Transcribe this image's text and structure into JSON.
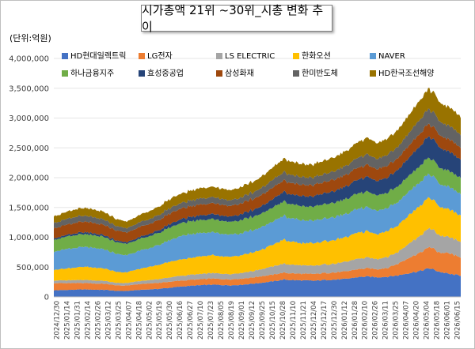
{
  "title": "시가총액 21위 ~30위_시총 변화 추이",
  "unit": "(단위:억원)",
  "chart_data": {
    "type": "area",
    "stacked": true,
    "ylim": [
      0,
      4000000
    ],
    "yticks": [
      "0",
      "500,000",
      "1,000,000",
      "1,500,000",
      "2,000,000",
      "2,500,000",
      "3,000,000",
      "3,500,000",
      "4,000,000"
    ],
    "xticks": [
      "2024/12/30",
      "2025/01/14",
      "2025/01/31",
      "2025/02/14",
      "2025/02/26",
      "2025/03/12",
      "2025/03/25",
      "2025/04/07",
      "2025/04/18",
      "2025/05/02",
      "2025/05/19",
      "2025/05/30",
      "2025/06/16",
      "2025/06/27",
      "2025/07/10",
      "2025/07/23",
      "2025/08/05",
      "2025/08/19",
      "2025/09/01",
      "2025/09/12",
      "2025/09/25",
      "2025/10/15",
      "2025/10/28",
      "2025/11/10",
      "2025/11/21",
      "2025/12/04",
      "2025/12/17",
      "2025/12/30",
      "2026/01/12",
      "2026/01/28",
      "2026/02/10",
      "2026/02/26",
      "2026/03/11",
      "2026/03/25",
      "2026/04/07",
      "2026/04/20",
      "2026/05/04",
      "2026/05/18",
      "2026/06/01",
      "2026/06/15"
    ],
    "legend_position": "top",
    "series": [
      {
        "name": "HD현대일렉트릭",
        "color": "#4472C4",
        "values": [
          110000,
          115000,
          120000,
          125000,
          120000,
          118000,
          100000,
          100000,
          115000,
          125000,
          135000,
          150000,
          170000,
          185000,
          195000,
          205000,
          200000,
          195000,
          205000,
          220000,
          240000,
          260000,
          290000,
          280000,
          275000,
          270000,
          285000,
          290000,
          300000,
          330000,
          340000,
          330000,
          340000,
          360000,
          400000,
          430000,
          480000,
          420000,
          380000,
          360000
        ]
      },
      {
        "name": "LG전자",
        "color": "#ED7D31",
        "values": [
          120000,
          115000,
          110000,
          108000,
          105000,
          100000,
          92000,
          90000,
          95000,
          98000,
          100000,
          102000,
          100000,
          98000,
          100000,
          102000,
          100000,
          100000,
          102000,
          105000,
          110000,
          112000,
          115000,
          112000,
          112000,
          113000,
          118000,
          120000,
          125000,
          130000,
          140000,
          135000,
          150000,
          200000,
          250000,
          300000,
          360000,
          320000,
          340000,
          300000
        ]
      },
      {
        "name": "LS ELECTRIC",
        "color": "#A5A5A5",
        "values": [
          45000,
          47000,
          50000,
          52000,
          50000,
          48000,
          42000,
          42000,
          48000,
          55000,
          62000,
          70000,
          80000,
          85000,
          88000,
          92000,
          90000,
          88000,
          95000,
          105000,
          120000,
          140000,
          150000,
          145000,
          140000,
          138000,
          145000,
          150000,
          160000,
          175000,
          180000,
          175000,
          185000,
          200000,
          240000,
          280000,
          320000,
          290000,
          270000,
          260000
        ]
      },
      {
        "name": "한화오션",
        "color": "#FFC000",
        "values": [
          180000,
          195000,
          210000,
          220000,
          215000,
          205000,
          185000,
          180000,
          200000,
          220000,
          240000,
          260000,
          275000,
          280000,
          290000,
          300000,
          295000,
          290000,
          300000,
          310000,
          330000,
          360000,
          400000,
          380000,
          370000,
          375000,
          390000,
          400000,
          410000,
          430000,
          440000,
          420000,
          430000,
          450000,
          480000,
          500000,
          520000,
          480000,
          460000,
          440000
        ]
      },
      {
        "name": "NAVER",
        "color": "#5B9BD5",
        "values": [
          310000,
          320000,
          330000,
          330000,
          325000,
          320000,
          300000,
          290000,
          300000,
          310000,
          330000,
          360000,
          390000,
          400000,
          395000,
          390000,
          380000,
          375000,
          370000,
          370000,
          380000,
          390000,
          400000,
          390000,
          385000,
          380000,
          380000,
          385000,
          390000,
          400000,
          405000,
          390000,
          385000,
          390000,
          395000,
          400000,
          400000,
          380000,
          370000,
          360000
        ]
      },
      {
        "name": "하나금융지주",
        "color": "#70AD47",
        "values": [
          200000,
          205000,
          210000,
          212000,
          210000,
          205000,
          195000,
          190000,
          195000,
          200000,
          205000,
          210000,
          215000,
          215000,
          218000,
          220000,
          218000,
          215000,
          220000,
          225000,
          230000,
          235000,
          240000,
          238000,
          236000,
          238000,
          242000,
          245000,
          250000,
          255000,
          260000,
          255000,
          258000,
          262000,
          268000,
          272000,
          275000,
          270000,
          268000,
          265000
        ]
      },
      {
        "name": "효성중공업",
        "color": "#264478",
        "values": [
          25000,
          27000,
          30000,
          33000,
          32000,
          30000,
          27000,
          27000,
          32000,
          38000,
          45000,
          55000,
          65000,
          72000,
          78000,
          85000,
          88000,
          90000,
          100000,
          110000,
          125000,
          140000,
          160000,
          165000,
          170000,
          175000,
          185000,
          195000,
          210000,
          230000,
          250000,
          240000,
          255000,
          275000,
          300000,
          330000,
          360000,
          340000,
          320000,
          310000
        ]
      },
      {
        "name": "삼성화재",
        "color": "#9E480E",
        "values": [
          170000,
          172000,
          175000,
          176000,
          174000,
          172000,
          165000,
          162000,
          165000,
          168000,
          172000,
          175000,
          178000,
          178000,
          180000,
          182000,
          180000,
          178000,
          182000,
          185000,
          188000,
          190000,
          192000,
          190000,
          188000,
          188000,
          190000,
          192000,
          195000,
          198000,
          200000,
          196000,
          198000,
          200000,
          205000,
          208000,
          210000,
          205000,
          203000,
          200000
        ]
      },
      {
        "name": "한미반도체",
        "color": "#636363",
        "values": [
          90000,
          95000,
          100000,
          98000,
          95000,
          88000,
          75000,
          72000,
          78000,
          82000,
          85000,
          88000,
          92000,
          95000,
          100000,
          102000,
          98000,
          95000,
          100000,
          110000,
          120000,
          130000,
          140000,
          135000,
          130000,
          128000,
          135000,
          140000,
          150000,
          165000,
          175000,
          170000,
          180000,
          190000,
          210000,
          230000,
          250000,
          235000,
          225000,
          215000
        ]
      },
      {
        "name": "HD한국조선해양",
        "color": "#997300",
        "values": [
          110000,
          118000,
          125000,
          130000,
          128000,
          125000,
          115000,
          112000,
          120000,
          130000,
          140000,
          150000,
          160000,
          165000,
          170000,
          175000,
          172000,
          170000,
          175000,
          180000,
          190000,
          205000,
          225000,
          220000,
          215000,
          218000,
          228000,
          235000,
          245000,
          260000,
          275000,
          265000,
          272000,
          285000,
          300000,
          320000,
          340000,
          320000,
          310000,
          300000
        ]
      }
    ]
  }
}
